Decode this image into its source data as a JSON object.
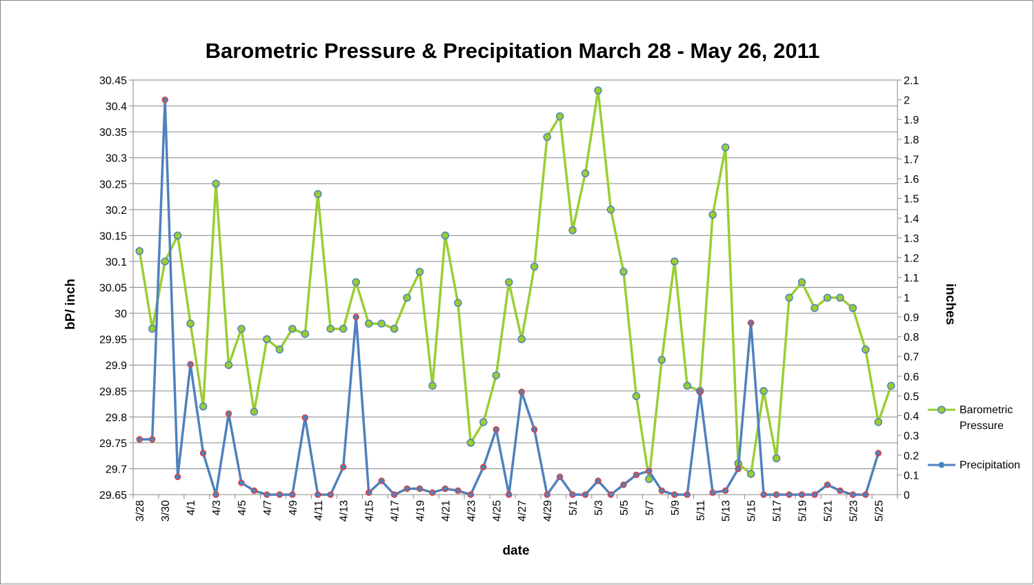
{
  "chart_data": {
    "type": "line",
    "title": "Barometric Pressure & Precipitation March 28 - May 26, 2011",
    "xlabel": "date",
    "ylabel_left": "bP/ inch",
    "ylabel_right": "inches",
    "ylim_left": [
      29.65,
      30.45
    ],
    "ylim_right": [
      0,
      2.1
    ],
    "yticks_left": [
      "29.65",
      "29.7",
      "29.75",
      "29.8",
      "29.85",
      "29.9",
      "29.95",
      "30",
      "30.05",
      "30.1",
      "30.15",
      "30.2",
      "30.25",
      "30.3",
      "30.35",
      "30.4",
      "30.45"
    ],
    "yticks_right": [
      "0",
      "0.1",
      "0.2",
      "0.3",
      "0.4",
      "0.5",
      "0.6",
      "0.7",
      "0.8",
      "0.9",
      "1",
      "1.1",
      "1.2",
      "1.3",
      "1.4",
      "1.5",
      "1.6",
      "1.7",
      "1.8",
      "1.9",
      "2",
      "2.1"
    ],
    "categories": [
      "3/28",
      "3/29",
      "3/30",
      "3/31",
      "4/1",
      "4/2",
      "4/3",
      "4/4",
      "4/5",
      "4/6",
      "4/7",
      "4/8",
      "4/9",
      "4/10",
      "4/11",
      "4/12",
      "4/13",
      "4/14",
      "4/15",
      "4/16",
      "4/17",
      "4/18",
      "4/19",
      "4/20",
      "4/21",
      "4/22",
      "4/23",
      "4/24",
      "4/25",
      "4/26",
      "4/27",
      "4/28",
      "4/29",
      "4/30",
      "5/1",
      "5/2",
      "5/3",
      "5/4",
      "5/5",
      "5/6",
      "5/7",
      "5/8",
      "5/9",
      "5/10",
      "5/11",
      "5/12",
      "5/13",
      "5/14",
      "5/15",
      "5/16",
      "5/17",
      "5/18",
      "5/19",
      "5/20",
      "5/21",
      "5/22",
      "5/23",
      "5/24",
      "5/25",
      "5/26"
    ],
    "xtick_labels": [
      "3/28",
      "3/30",
      "4/1",
      "4/3",
      "4/5",
      "4/7",
      "4/9",
      "4/11",
      "4/13",
      "4/15",
      "4/17",
      "4/19",
      "4/21",
      "4/23",
      "4/25",
      "4/27",
      "4/29",
      "5/1",
      "5/3",
      "5/5",
      "5/7",
      "5/9",
      "5/11",
      "5/13",
      "5/15",
      "5/17",
      "5/19",
      "5/21",
      "5/23",
      "5/25"
    ],
    "series": [
      {
        "name": "Barometric Pressure",
        "axis": "left",
        "color": "#9ACD32",
        "marker_edge": "#4F81BD",
        "values": [
          30.12,
          29.97,
          30.1,
          30.15,
          29.98,
          29.82,
          30.25,
          29.9,
          29.97,
          29.81,
          29.95,
          29.93,
          29.97,
          29.96,
          30.23,
          29.97,
          29.97,
          30.06,
          29.98,
          29.98,
          29.97,
          30.03,
          30.08,
          29.86,
          30.15,
          30.02,
          29.75,
          29.79,
          29.88,
          30.06,
          29.95,
          30.09,
          30.34,
          30.38,
          30.16,
          30.27,
          30.43,
          30.2,
          30.08,
          29.84,
          29.68,
          29.91,
          30.1,
          29.86,
          29.85,
          30.19,
          30.32,
          29.71,
          29.69,
          29.85,
          29.72,
          30.03,
          30.06,
          30.01,
          30.03,
          30.03,
          30.01,
          29.93,
          29.79,
          29.86
        ]
      },
      {
        "name": "Precipitation",
        "axis": "right",
        "color": "#4F81BD",
        "marker_edge": "#E0403A",
        "values": [
          0.28,
          0.28,
          2.0,
          0.09,
          0.66,
          0.21,
          0.0,
          0.41,
          0.06,
          0.02,
          0.0,
          0.0,
          0.0,
          0.39,
          0.0,
          0.0,
          0.14,
          0.9,
          0.01,
          0.07,
          0.0,
          0.03,
          0.03,
          0.01,
          0.03,
          0.02,
          0.0,
          0.14,
          0.33,
          0.0,
          0.52,
          0.33,
          0.0,
          0.09,
          0.0,
          0.0,
          0.07,
          0.0,
          0.05,
          0.1,
          0.12,
          0.02,
          0.0,
          0.0,
          0.52,
          0.01,
          0.02,
          0.13,
          0.87,
          0.0,
          0.0,
          0.0,
          0.0,
          0.0,
          0.05,
          0.02,
          0.0,
          0.0,
          0.21,
          null
        ]
      }
    ],
    "legend_position": "right",
    "grid": true
  }
}
